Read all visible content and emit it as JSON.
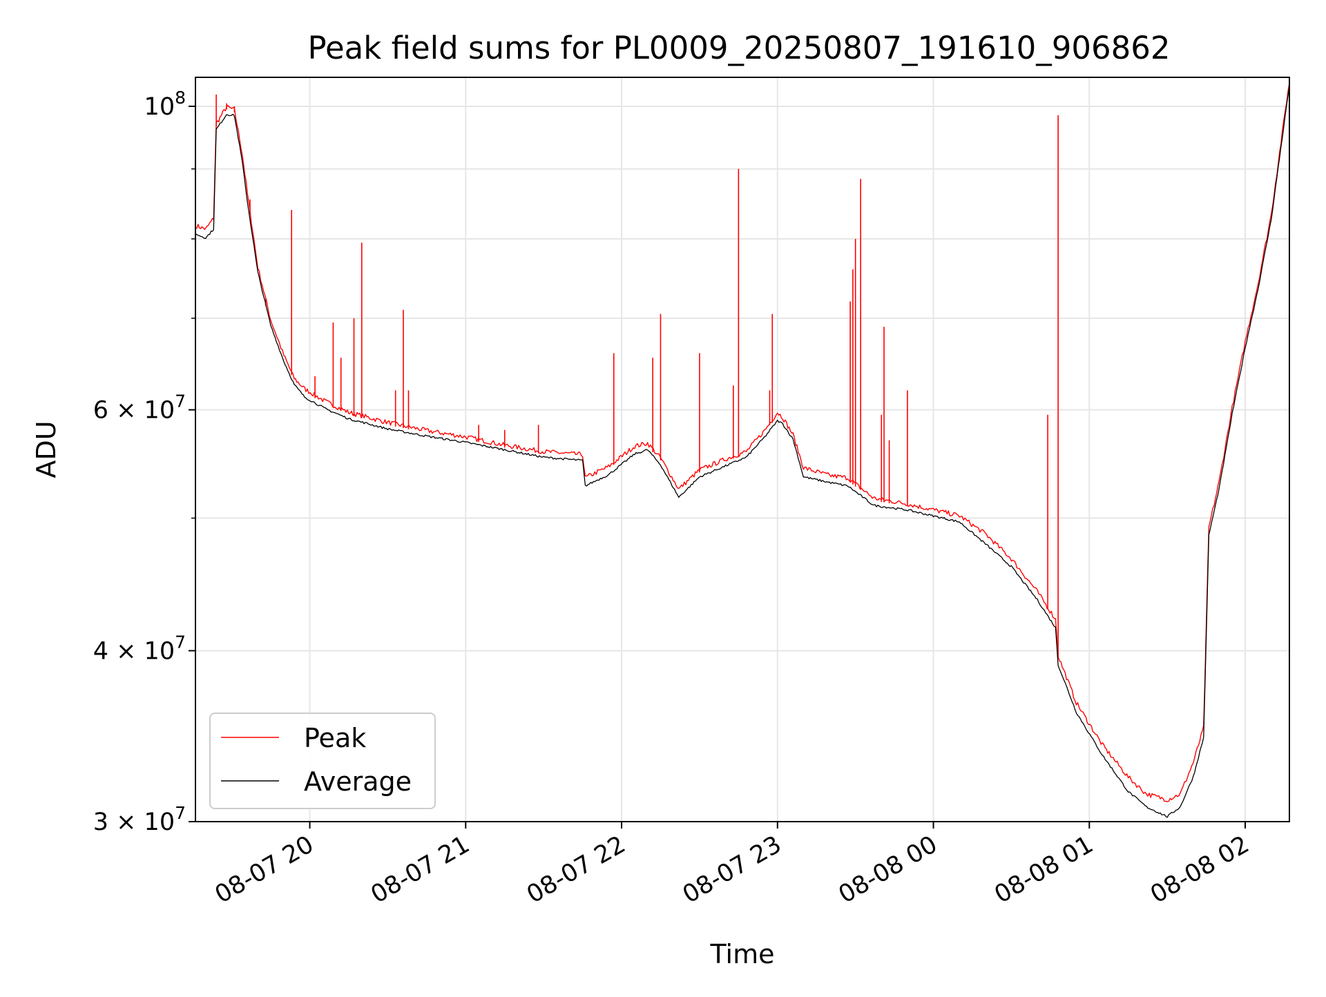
{
  "chart_data": {
    "type": "line",
    "title": "Peak field sums for PL0009_20250807_191610_906862",
    "xlabel": "Time",
    "ylabel": "ADU",
    "yscale": "log",
    "grid": true,
    "legend_position": "lower-left",
    "x_range": [
      "2025-08-07 19:16",
      "2025-08-08 02:17"
    ],
    "ylim": [
      30000000,
      105000000
    ],
    "x_ticks": [
      {
        "value": "2025-08-07 20:00",
        "label": "08-07 20"
      },
      {
        "value": "2025-08-07 21:00",
        "label": "08-07 21"
      },
      {
        "value": "2025-08-07 22:00",
        "label": "08-07 22"
      },
      {
        "value": "2025-08-07 23:00",
        "label": "08-07 23"
      },
      {
        "value": "2025-08-08 00:00",
        "label": "08-08 00"
      },
      {
        "value": "2025-08-08 01:00",
        "label": "08-08 01"
      },
      {
        "value": "2025-08-08 02:00",
        "label": "08-08 02"
      }
    ],
    "y_ticks": [
      {
        "value": 30000000,
        "mantissa": "3",
        "exp": "7"
      },
      {
        "value": 40000000,
        "mantissa": "4",
        "exp": "7"
      },
      {
        "value": 60000000,
        "mantissa": "6",
        "exp": "7"
      },
      {
        "value": 100000000,
        "mantissa": "",
        "exp": "8"
      }
    ],
    "y_minor_ticks": [
      50000000,
      70000000,
      80000000,
      90000000
    ],
    "series": [
      {
        "name": "Peak",
        "color": "#ff0000",
        "x": [
          "2025-08-07 19:16",
          "2025-08-07 19:20",
          "2025-08-07 19:23",
          "2025-08-07 19:24",
          "2025-08-07 19:28",
          "2025-08-07 19:31",
          "2025-08-07 19:34",
          "2025-08-07 19:36",
          "2025-08-07 19:40",
          "2025-08-07 19:45",
          "2025-08-07 19:50",
          "2025-08-07 19:54",
          "2025-08-07 19:58",
          "2025-08-07 20:06",
          "2025-08-07 20:15",
          "2025-08-07 20:30",
          "2025-08-07 20:45",
          "2025-08-07 21:00",
          "2025-08-07 21:15",
          "2025-08-07 21:30",
          "2025-08-07 21:45",
          "2025-08-07 21:46",
          "2025-08-07 21:55",
          "2025-08-07 22:05",
          "2025-08-07 22:10",
          "2025-08-07 22:15",
          "2025-08-07 22:22",
          "2025-08-07 22:30",
          "2025-08-07 22:40",
          "2025-08-07 22:48",
          "2025-08-07 22:55",
          "2025-08-07 23:00",
          "2025-08-07 23:02",
          "2025-08-07 23:06",
          "2025-08-07 23:10",
          "2025-08-07 23:20",
          "2025-08-07 23:27",
          "2025-08-07 23:37",
          "2025-08-07 23:50",
          "2025-08-08 00:10",
          "2025-08-08 00:20",
          "2025-08-08 00:30",
          "2025-08-08 00:40",
          "2025-08-08 00:47",
          "2025-08-08 00:48",
          "2025-08-08 00:55",
          "2025-08-08 01:05",
          "2025-08-08 01:15",
          "2025-08-08 01:22",
          "2025-08-08 01:30",
          "2025-08-08 01:35",
          "2025-08-08 01:40",
          "2025-08-08 01:44",
          "2025-08-08 01:46",
          "2025-08-08 01:50",
          "2025-08-08 01:55",
          "2025-08-08 02:00",
          "2025-08-08 02:05",
          "2025-08-08 02:10",
          "2025-08-08 02:17"
        ],
        "y": [
          81500000,
          81000000,
          82500000,
          96700000,
          99500000,
          99000000,
          92000000,
          86000000,
          76000000,
          69500000,
          65500000,
          63000000,
          61900000,
          60600000,
          59500000,
          58500000,
          57700000,
          57100000,
          56300000,
          55700000,
          55400000,
          53300000,
          54300000,
          56200000,
          56500000,
          55100000,
          52300000,
          54000000,
          55000000,
          55700000,
          57700000,
          59500000,
          59000000,
          57300000,
          54200000,
          53500000,
          53300000,
          51500000,
          51000000,
          50000000,
          48500000,
          46500000,
          44000000,
          42000000,
          39500000,
          36500000,
          34000000,
          32200000,
          31300000,
          31000000,
          31300000,
          33000000,
          35000000,
          49000000,
          53000000,
          60000000,
          67000000,
          74000000,
          83000000,
          104000000
        ]
      },
      {
        "name": "Average",
        "color": "#000000",
        "x": [
          "2025-08-07 19:16",
          "2025-08-07 19:20",
          "2025-08-07 19:23",
          "2025-08-07 19:24",
          "2025-08-07 19:28",
          "2025-08-07 19:31",
          "2025-08-07 19:34",
          "2025-08-07 19:36",
          "2025-08-07 19:40",
          "2025-08-07 19:45",
          "2025-08-07 19:50",
          "2025-08-07 19:54",
          "2025-08-07 19:58",
          "2025-08-07 20:06",
          "2025-08-07 20:15",
          "2025-08-07 20:30",
          "2025-08-07 20:45",
          "2025-08-07 21:00",
          "2025-08-07 21:15",
          "2025-08-07 21:30",
          "2025-08-07 21:45",
          "2025-08-07 21:46",
          "2025-08-07 21:55",
          "2025-08-07 22:05",
          "2025-08-07 22:10",
          "2025-08-07 22:15",
          "2025-08-07 22:22",
          "2025-08-07 22:30",
          "2025-08-07 22:40",
          "2025-08-07 22:48",
          "2025-08-07 22:55",
          "2025-08-07 23:00",
          "2025-08-07 23:02",
          "2025-08-07 23:06",
          "2025-08-07 23:10",
          "2025-08-07 23:20",
          "2025-08-07 23:27",
          "2025-08-07 23:37",
          "2025-08-07 23:50",
          "2025-08-08 00:10",
          "2025-08-08 00:20",
          "2025-08-08 00:30",
          "2025-08-08 00:40",
          "2025-08-08 00:47",
          "2025-08-08 00:48",
          "2025-08-08 00:55",
          "2025-08-08 01:05",
          "2025-08-08 01:15",
          "2025-08-08 01:22",
          "2025-08-08 01:30",
          "2025-08-08 01:35",
          "2025-08-08 01:40",
          "2025-08-08 01:44",
          "2025-08-08 01:46",
          "2025-08-08 01:50",
          "2025-08-08 01:55",
          "2025-08-08 02:00",
          "2025-08-08 02:05",
          "2025-08-08 02:10",
          "2025-08-08 02:17"
        ],
        "y": [
          80500000,
          80000000,
          81200000,
          96000000,
          98500000,
          98300000,
          91000000,
          85000000,
          75500000,
          69000000,
          65000000,
          62500000,
          61200000,
          60000000,
          59000000,
          58000000,
          57300000,
          56700000,
          56000000,
          55300000,
          55000000,
          52700000,
          53700000,
          55600000,
          56000000,
          54600000,
          51700000,
          53500000,
          54500000,
          55300000,
          57200000,
          58800000,
          58500000,
          57000000,
          53500000,
          53000000,
          52700000,
          51000000,
          50600000,
          49600000,
          47800000,
          46000000,
          43500000,
          41500000,
          39000000,
          36000000,
          33500000,
          31500000,
          30700000,
          30200000,
          30700000,
          32300000,
          34500000,
          48500000,
          52500000,
          59500000,
          66500000,
          73500000,
          82500000,
          103500000
        ]
      }
    ],
    "spikes": [
      {
        "x": "2025-08-07 19:24",
        "y": 102000000
      },
      {
        "x": "2025-08-07 19:28",
        "y": 100500000
      },
      {
        "x": "2025-08-07 19:31",
        "y": 100000000
      },
      {
        "x": "2025-08-07 19:37",
        "y": 85500000
      },
      {
        "x": "2025-08-07 19:43",
        "y": 71500000
      },
      {
        "x": "2025-08-07 19:53",
        "y": 84000000
      },
      {
        "x": "2025-08-07 20:02",
        "y": 63500000
      },
      {
        "x": "2025-08-07 20:09",
        "y": 69500000
      },
      {
        "x": "2025-08-07 20:12",
        "y": 65500000
      },
      {
        "x": "2025-08-07 20:17",
        "y": 70000000
      },
      {
        "x": "2025-08-07 20:20",
        "y": 79500000
      },
      {
        "x": "2025-08-07 20:33",
        "y": 62000000
      },
      {
        "x": "2025-08-07 20:36",
        "y": 71000000
      },
      {
        "x": "2025-08-07 20:38",
        "y": 62000000
      },
      {
        "x": "2025-08-07 21:05",
        "y": 58500000
      },
      {
        "x": "2025-08-07 21:15",
        "y": 58000000
      },
      {
        "x": "2025-08-07 21:28",
        "y": 58500000
      },
      {
        "x": "2025-08-07 21:57",
        "y": 66000000
      },
      {
        "x": "2025-08-07 22:12",
        "y": 65500000
      },
      {
        "x": "2025-08-07 22:15",
        "y": 70500000
      },
      {
        "x": "2025-08-07 22:30",
        "y": 66000000
      },
      {
        "x": "2025-08-07 22:43",
        "y": 62500000
      },
      {
        "x": "2025-08-07 22:45",
        "y": 90000000
      },
      {
        "x": "2025-08-07 22:57",
        "y": 62000000
      },
      {
        "x": "2025-08-07 22:58",
        "y": 70500000
      },
      {
        "x": "2025-08-07 23:28",
        "y": 72000000
      },
      {
        "x": "2025-08-07 23:29",
        "y": 76000000
      },
      {
        "x": "2025-08-07 23:30",
        "y": 80000000
      },
      {
        "x": "2025-08-07 23:32",
        "y": 88500000
      },
      {
        "x": "2025-08-07 23:40",
        "y": 59500000
      },
      {
        "x": "2025-08-07 23:41",
        "y": 69000000
      },
      {
        "x": "2025-08-07 23:43",
        "y": 57000000
      },
      {
        "x": "2025-08-07 23:50",
        "y": 62000000
      },
      {
        "x": "2025-08-08 00:44",
        "y": 59500000
      },
      {
        "x": "2025-08-08 00:48",
        "y": 98500000
      }
    ]
  }
}
